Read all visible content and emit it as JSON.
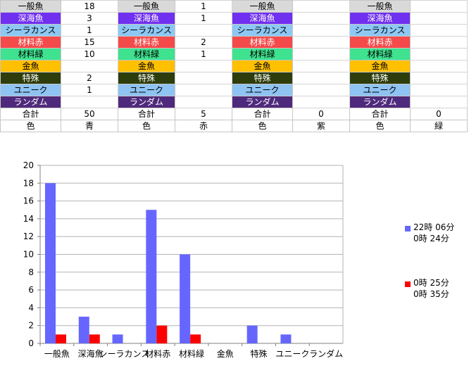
{
  "table": {
    "rows": [
      {
        "key": "ippangyo",
        "label": "一般魚",
        "bg": "#d9d9d9",
        "fg": "#000000",
        "values": [
          "18",
          "1",
          "",
          ""
        ]
      },
      {
        "key": "shinkaigyo",
        "label": "深海魚",
        "bg": "#7030f0",
        "fg": "#ffffff",
        "values": [
          "3",
          "1",
          "",
          ""
        ]
      },
      {
        "key": "coelacanth",
        "label": "シーラカンス",
        "bg": "#8dc8f5",
        "fg": "#000000",
        "values": [
          "1",
          "",
          "",
          ""
        ]
      },
      {
        "key": "zairyo-aka",
        "label": "材料赤",
        "bg": "#f44a4a",
        "fg": "#ffffff",
        "values": [
          "15",
          "2",
          "",
          ""
        ]
      },
      {
        "key": "zairyo-midori",
        "label": "材料緑",
        "bg": "#3fe28f",
        "fg": "#000000",
        "values": [
          "10",
          "1",
          "",
          ""
        ]
      },
      {
        "key": "kingyo",
        "label": "金魚",
        "bg": "#ffc000",
        "fg": "#000000",
        "values": [
          "",
          "",
          "",
          ""
        ]
      },
      {
        "key": "tokushu",
        "label": "特殊",
        "bg": "#2e3d0c",
        "fg": "#ffffff",
        "values": [
          "2",
          "",
          "",
          ""
        ]
      },
      {
        "key": "unique",
        "label": "ユニーク",
        "bg": "#8ec3f2",
        "fg": "#000000",
        "values": [
          "1",
          "",
          "",
          ""
        ]
      },
      {
        "key": "random",
        "label": "ランダム",
        "bg": "#4f2a7c",
        "fg": "#ffffff",
        "values": [
          "",
          "",
          "",
          ""
        ]
      }
    ],
    "total_label": "合計",
    "totals": [
      "50",
      "5",
      "0",
      "0"
    ],
    "color_label": "色",
    "colors": [
      "青",
      "赤",
      "紫",
      "緑"
    ]
  },
  "chart_data": {
    "type": "bar",
    "categories": [
      "一般魚",
      "深海魚",
      "シーラカンス",
      "材料赤",
      "材料緑",
      "金魚",
      "特殊",
      "ユニーク",
      "ランダム"
    ],
    "series": [
      {
        "name": "22時 06分\n0時 24分",
        "color": "#6666ff",
        "values": [
          18,
          3,
          1,
          15,
          10,
          0,
          2,
          1,
          0
        ]
      },
      {
        "name": "0時 25分\n0時 35分",
        "color": "#ff0000",
        "values": [
          1,
          1,
          0,
          2,
          1,
          0,
          0,
          0,
          0
        ]
      }
    ],
    "ylim": [
      0,
      20
    ],
    "yticks": [
      0,
      2,
      4,
      6,
      8,
      10,
      12,
      14,
      16,
      18,
      20
    ],
    "grid": true,
    "legend": "right"
  }
}
